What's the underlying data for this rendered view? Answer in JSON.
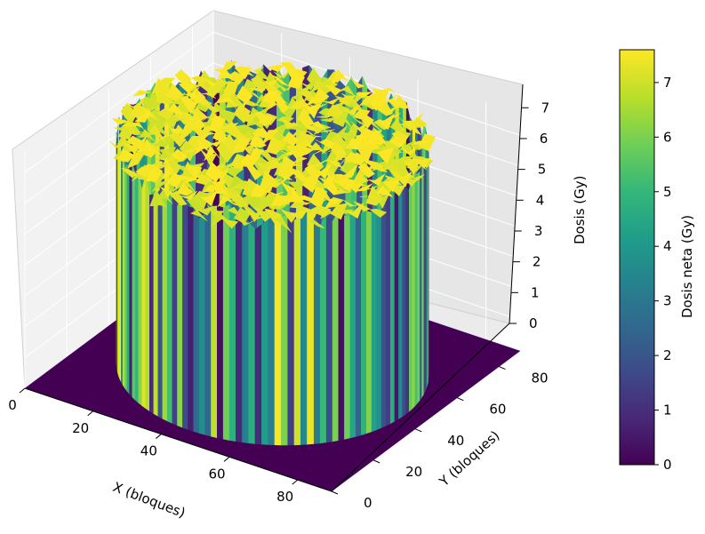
{
  "chart_data": {
    "type": "surface3d",
    "title": "",
    "xlabel": "X (bloques)",
    "ylabel": "Y (bloques)",
    "zlabel": "Dosis (Gy)",
    "x_ticks": [
      "0",
      "20",
      "40",
      "60",
      "80"
    ],
    "y_ticks": [
      "0",
      "20",
      "40",
      "60",
      "80"
    ],
    "z_ticks": [
      "0",
      "1",
      "2",
      "3",
      "4",
      "5",
      "6",
      "7"
    ],
    "xlim": [
      0,
      90
    ],
    "ylim": [
      0,
      90
    ],
    "zlim": [
      0,
      7.7
    ],
    "grid": true,
    "colormap": "viridis",
    "field": {
      "shape": "cylinder",
      "center_x": 45,
      "center_y": 45,
      "radius": 39,
      "dose_inside_mean": 7.3,
      "dose_inside_noise": 0.35,
      "dose_outside": 0
    },
    "colorbar": {
      "label": "Dosis neta (Gy)",
      "ticks": [
        "0",
        "1",
        "2",
        "3",
        "4",
        "5",
        "6",
        "7"
      ],
      "min": 0,
      "max": 7.6
    },
    "colors": {
      "viridis": [
        "#440154",
        "#482878",
        "#3e4989",
        "#31688e",
        "#26828e",
        "#1f9e89",
        "#35b779",
        "#6ece58",
        "#b5de2b",
        "#fde725"
      ]
    }
  }
}
